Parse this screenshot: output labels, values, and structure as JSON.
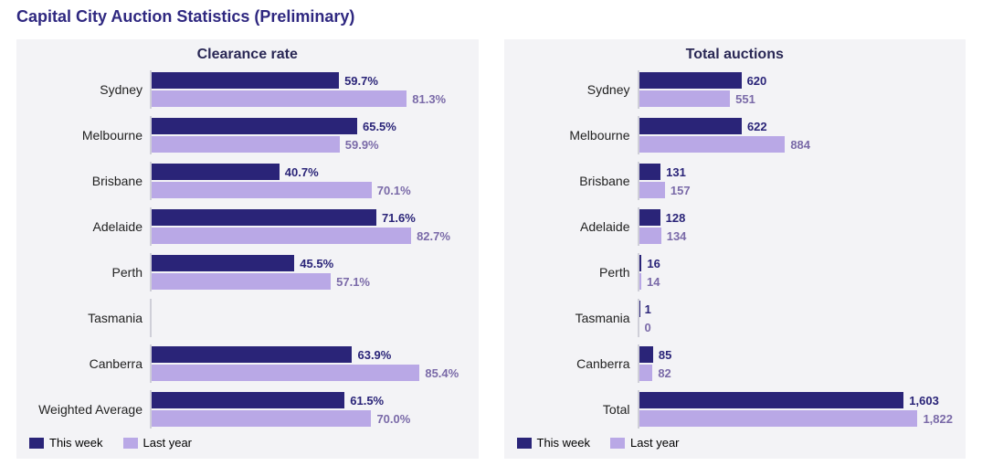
{
  "title": "Capital City Auction Statistics (Preliminary)",
  "colors": {
    "this_week": "#2a2478",
    "last_year": "#b9a8e6",
    "panel_bg": "#f3f3f6",
    "title_color": "#2f2880",
    "text_color": "#222222",
    "last_year_value_color": "#7a6aa8",
    "axis_line": "#cfcfd8"
  },
  "typography": {
    "page_title_size": 18,
    "chart_title_size": 16,
    "label_size": 14,
    "value_size": 13,
    "legend_size": 13,
    "font_family": "sans-serif"
  },
  "legend": {
    "this_week": "This week",
    "last_year": "Last year"
  },
  "charts": [
    {
      "title": "Clearance rate",
      "chart_type": "grouped-horizontal-bar",
      "value_format": "percent",
      "x_max": 100,
      "categories": [
        "Sydney",
        "Melbourne",
        "Brisbane",
        "Adelaide",
        "Perth",
        "Tasmania",
        "Canberra",
        "Weighted Average"
      ],
      "series": {
        "this_week": [
          59.7,
          65.5,
          40.7,
          71.6,
          45.5,
          null,
          63.9,
          61.5
        ],
        "last_year": [
          81.3,
          59.9,
          70.1,
          82.7,
          57.1,
          null,
          85.4,
          70.0
        ]
      }
    },
    {
      "title": "Total auctions",
      "chart_type": "grouped-horizontal-bar",
      "value_format": "integer",
      "x_max": 1900,
      "categories": [
        "Sydney",
        "Melbourne",
        "Brisbane",
        "Adelaide",
        "Perth",
        "Tasmania",
        "Canberra",
        "Total"
      ],
      "series": {
        "this_week": [
          620,
          622,
          131,
          128,
          16,
          1,
          85,
          1603
        ],
        "last_year": [
          551,
          884,
          157,
          134,
          14,
          0,
          82,
          1822
        ]
      }
    }
  ]
}
